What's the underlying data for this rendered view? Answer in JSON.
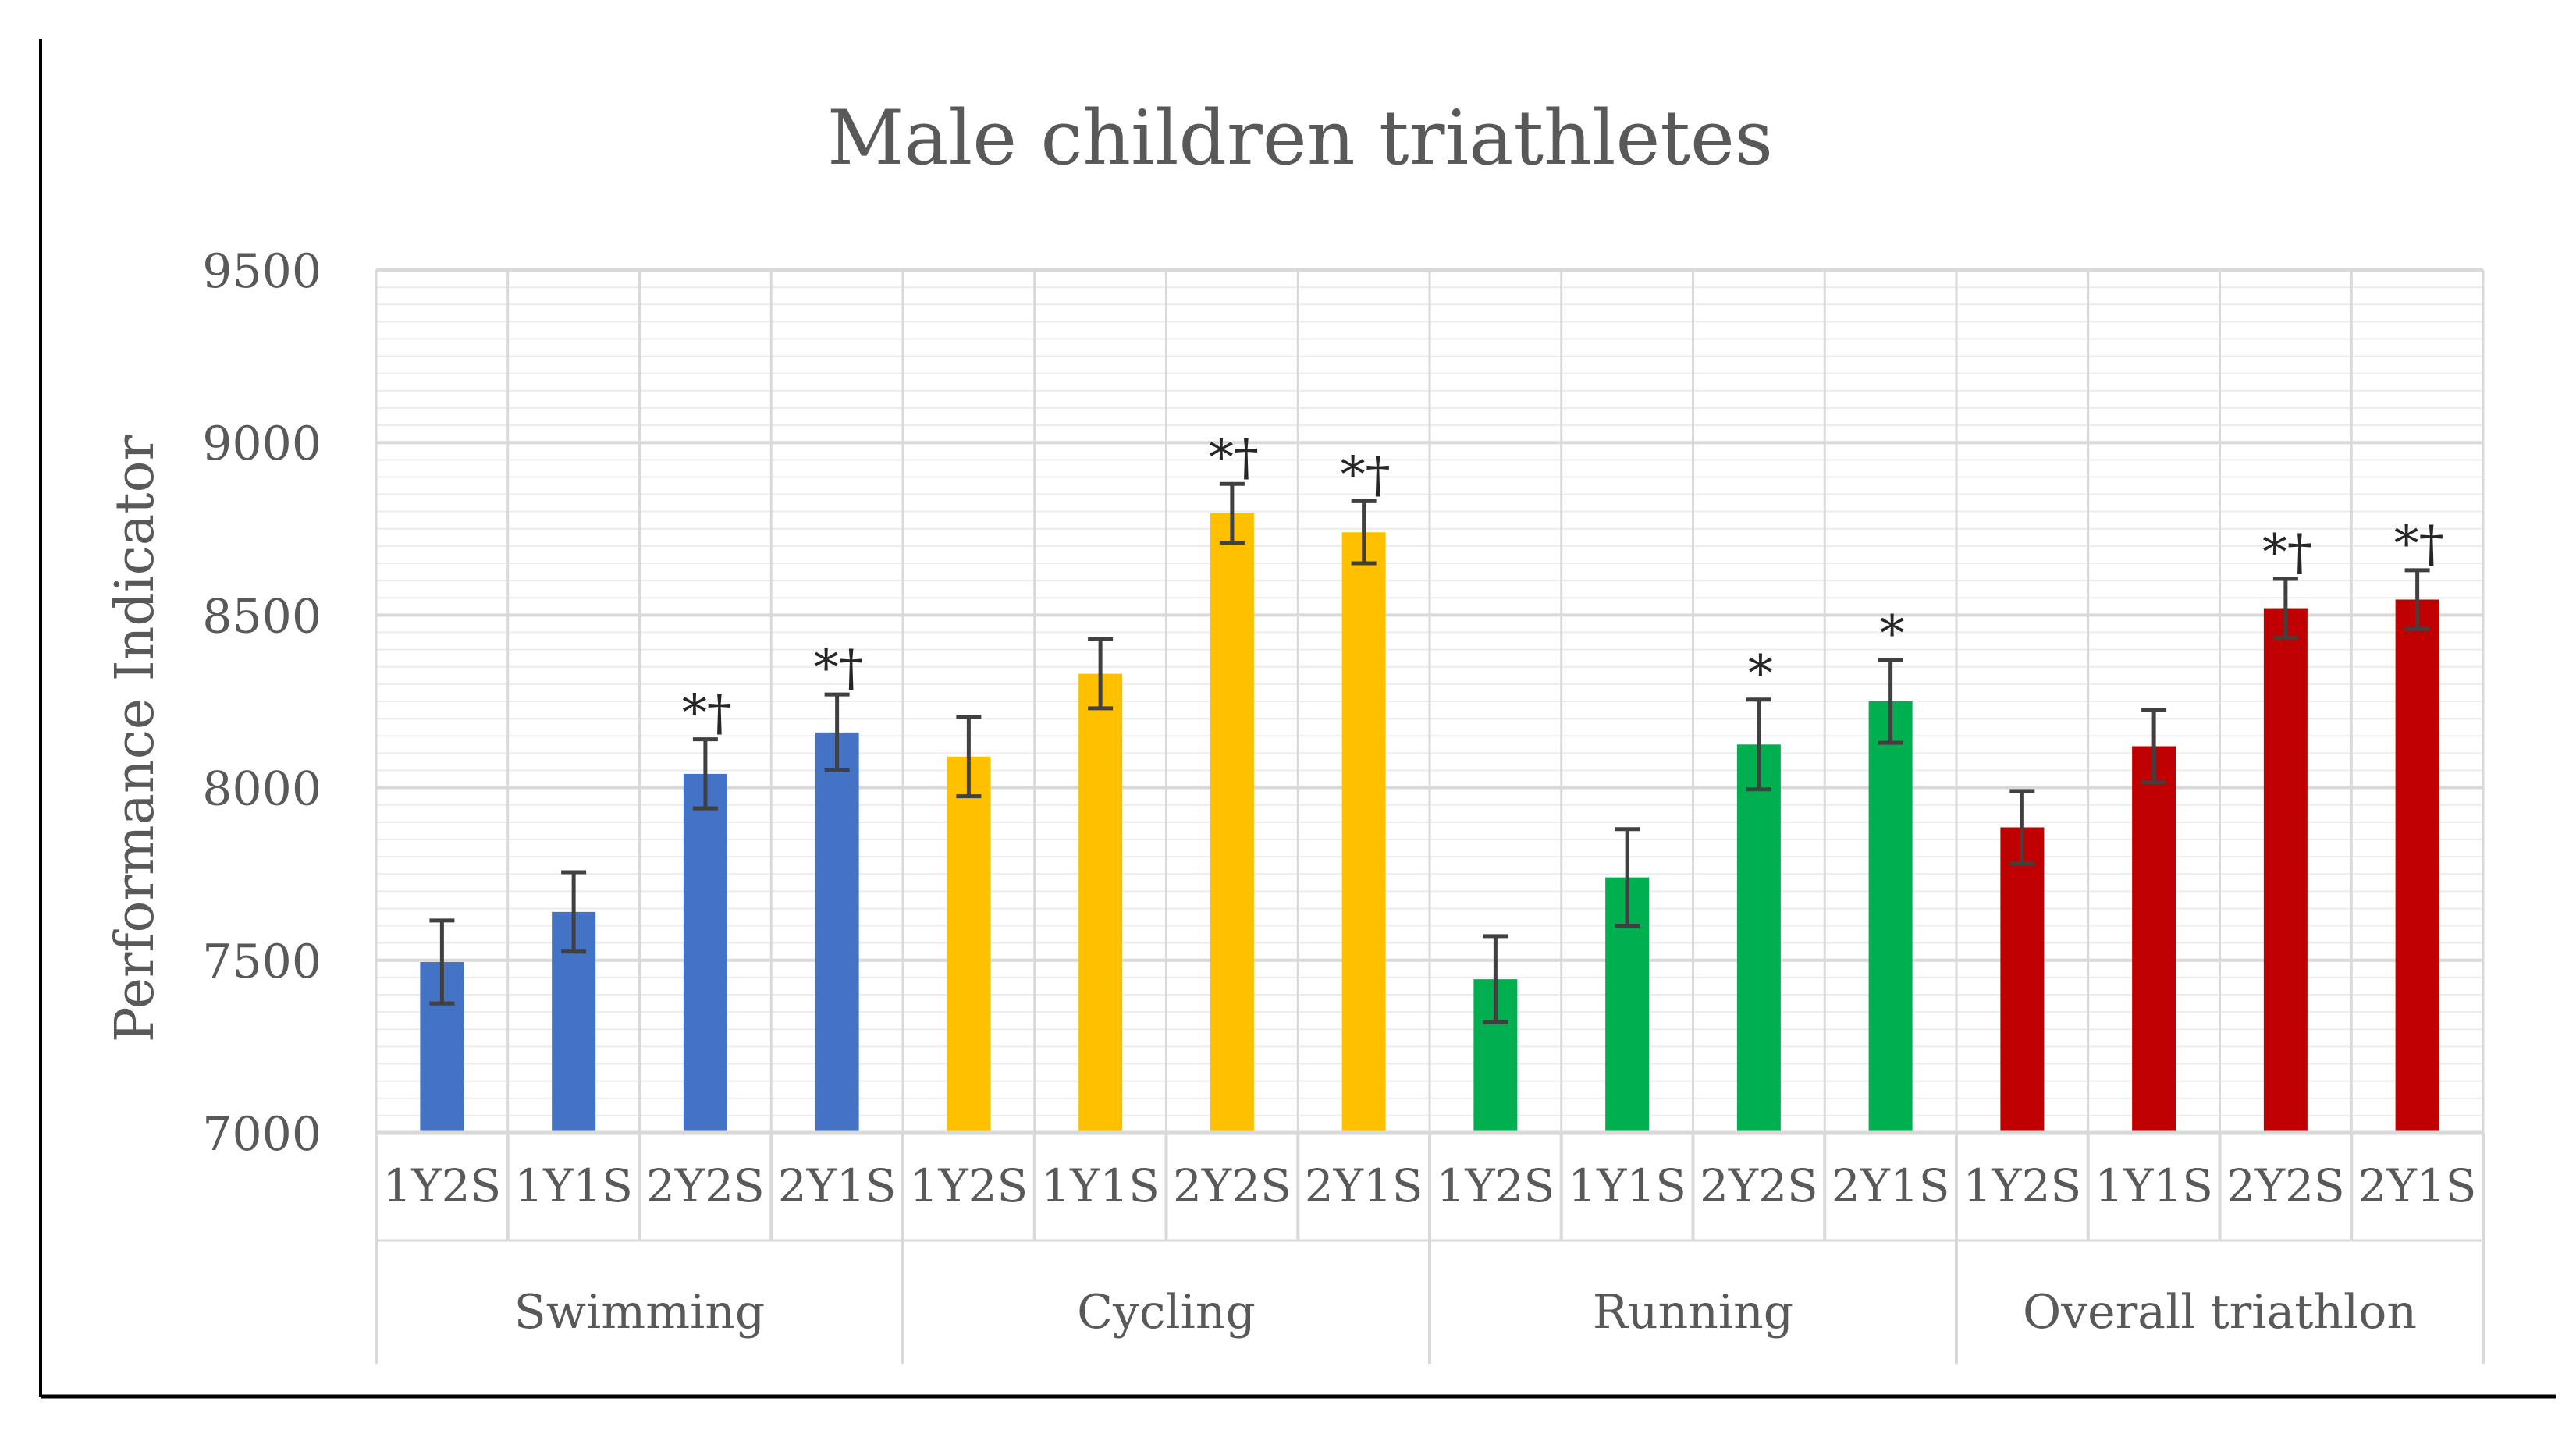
{
  "chart_data": {
    "type": "bar",
    "title": "Male children triathletes",
    "ylabel": "Performance Indicator",
    "xlabel": "",
    "ylim": [
      7000,
      9500
    ],
    "yticks": [
      7000,
      7500,
      8000,
      8500,
      9000,
      9500
    ],
    "minor_grid_step": 50,
    "grid": true,
    "legend": "none",
    "groups": [
      {
        "name": "Swimming",
        "color": "#4472C4",
        "bars": [
          {
            "category": "1Y2S",
            "value": 7495,
            "error": 120,
            "mark": ""
          },
          {
            "category": "1Y1S",
            "value": 7640,
            "error": 115,
            "mark": ""
          },
          {
            "category": "2Y2S",
            "value": 8040,
            "error": 100,
            "mark": "*†"
          },
          {
            "category": "2Y1S",
            "value": 8160,
            "error": 110,
            "mark": "*†"
          }
        ]
      },
      {
        "name": "Cycling",
        "color": "#FFC000",
        "bars": [
          {
            "category": "1Y2S",
            "value": 8090,
            "error": 115,
            "mark": ""
          },
          {
            "category": "1Y1S",
            "value": 8330,
            "error": 100,
            "mark": ""
          },
          {
            "category": "2Y2S",
            "value": 8795,
            "error": 85,
            "mark": "*†"
          },
          {
            "category": "2Y1S",
            "value": 8740,
            "error": 90,
            "mark": "*†"
          }
        ]
      },
      {
        "name": "Running",
        "color": "#00B050",
        "bars": [
          {
            "category": "1Y2S",
            "value": 7445,
            "error": 125,
            "mark": ""
          },
          {
            "category": "1Y1S",
            "value": 7740,
            "error": 140,
            "mark": ""
          },
          {
            "category": "2Y2S",
            "value": 8125,
            "error": 130,
            "mark": "*"
          },
          {
            "category": "2Y1S",
            "value": 8250,
            "error": 120,
            "mark": "*"
          }
        ]
      },
      {
        "name": "Overall triathlon",
        "color": "#C00000",
        "bars": [
          {
            "category": "1Y2S",
            "value": 7885,
            "error": 105,
            "mark": ""
          },
          {
            "category": "1Y1S",
            "value": 8120,
            "error": 105,
            "mark": ""
          },
          {
            "category": "2Y2S",
            "value": 8520,
            "error": 85,
            "mark": "*†"
          },
          {
            "category": "2Y1S",
            "value": 8545,
            "error": 85,
            "mark": "*†"
          }
        ]
      }
    ]
  }
}
